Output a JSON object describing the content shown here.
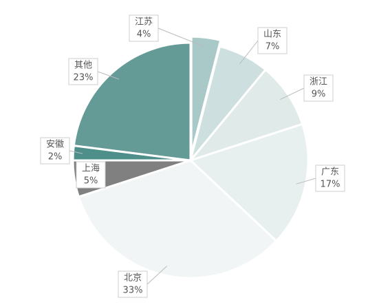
{
  "chart_data": {
    "type": "pie",
    "categories": [
      "江苏",
      "山东",
      "浙江",
      "广东",
      "北京",
      "上海",
      "安徽",
      "其他"
    ],
    "values": [
      4,
      7,
      9,
      17,
      33,
      5,
      2,
      23
    ],
    "value_labels": [
      "4%",
      "7%",
      "9%",
      "17%",
      "33%",
      "5%",
      "2%",
      "23%"
    ],
    "colors": [
      "#a9c8c8",
      "#cde0df",
      "#e0ebe9",
      "#e8f0ef",
      "#f2f5f5",
      "#808080",
      "#4e8f8a",
      "#659b97"
    ]
  }
}
